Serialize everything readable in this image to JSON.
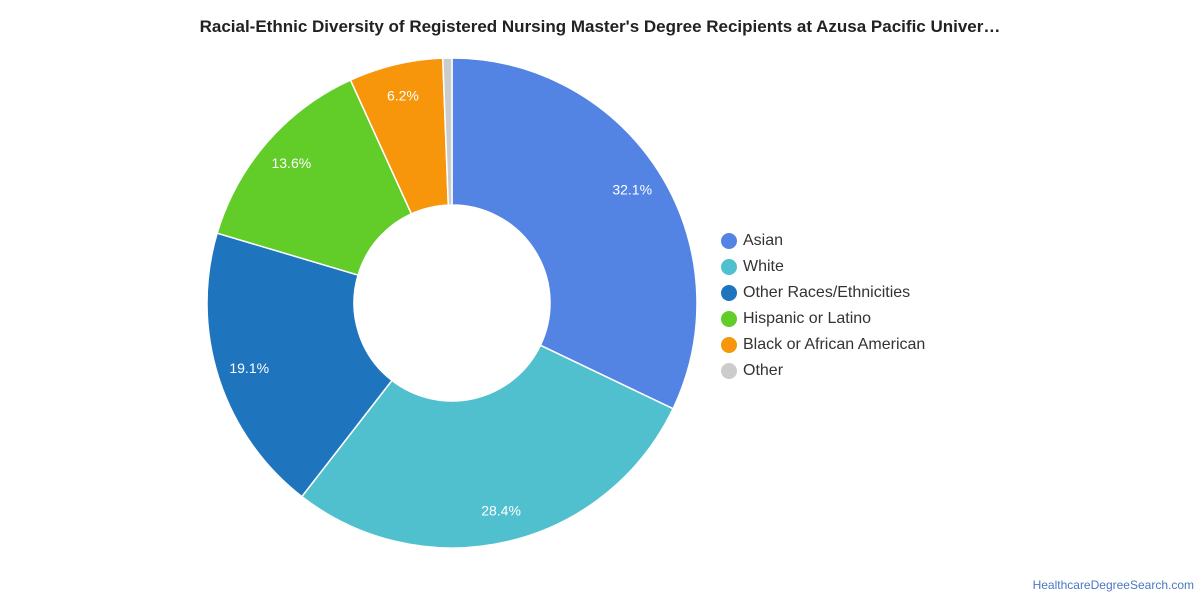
{
  "chart_data": {
    "type": "pie",
    "title": "Racial-Ethnic Diversity of Registered Nursing Master's Degree Recipients at Azusa Pacific Univer…",
    "categories": [
      "Asian",
      "White",
      "Other Races/Ethnicities",
      "Hispanic or Latino",
      "Black or African American",
      "Other"
    ],
    "values": [
      32.1,
      28.4,
      19.1,
      13.6,
      6.2,
      0.6
    ],
    "value_labels": [
      "32.1%",
      "28.4%",
      "19.1%",
      "13.6%",
      "6.2%",
      ""
    ],
    "colors": [
      "#5484e3",
      "#50c0ce",
      "#1f74be",
      "#62cc29",
      "#f7960a",
      "#cccccc"
    ],
    "donut": true,
    "legend_position": "right"
  },
  "footer": {
    "source_link": "HealthcareDegreeSearch.com"
  }
}
